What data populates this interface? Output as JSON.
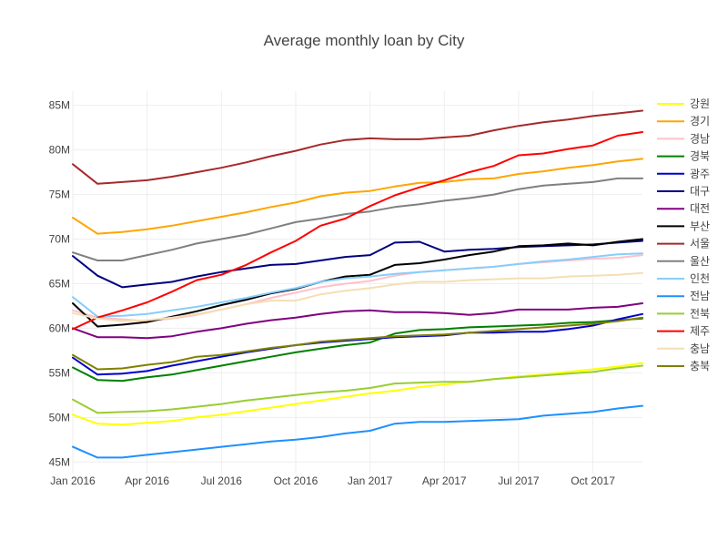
{
  "chart_data": {
    "type": "line",
    "title": "Average monthly loan by City",
    "xlabel": "",
    "ylabel": "",
    "x": [
      "2016-01",
      "2016-02",
      "2016-03",
      "2016-04",
      "2016-05",
      "2016-06",
      "2016-07",
      "2016-08",
      "2016-09",
      "2016-10",
      "2016-11",
      "2016-12",
      "2017-01",
      "2017-02",
      "2017-03",
      "2017-04",
      "2017-05",
      "2017-06",
      "2017-07",
      "2017-08",
      "2017-09",
      "2017-10",
      "2017-11",
      "2017-12"
    ],
    "x_ticks": [
      {
        "x": "2016-01",
        "label": "Jan 2016"
      },
      {
        "x": "2016-04",
        "label": "Apr 2016"
      },
      {
        "x": "2016-07",
        "label": "Jul 2016"
      },
      {
        "x": "2016-10",
        "label": "Oct 2016"
      },
      {
        "x": "2017-01",
        "label": "Jan 2017"
      },
      {
        "x": "2017-04",
        "label": "Apr 2017"
      },
      {
        "x": "2017-07",
        "label": "Jul 2017"
      },
      {
        "x": "2017-10",
        "label": "Oct 2017"
      }
    ],
    "ylim": [
      43.7,
      86.6
    ],
    "y_ticks": [
      {
        "value": 45,
        "label": "45M"
      },
      {
        "value": 50,
        "label": "50M"
      },
      {
        "value": 55,
        "label": "55M"
      },
      {
        "value": 60,
        "label": "60M"
      },
      {
        "value": 65,
        "label": "65M"
      },
      {
        "value": 70,
        "label": "70M"
      },
      {
        "value": 75,
        "label": "75M"
      },
      {
        "value": 80,
        "label": "80M"
      },
      {
        "value": 85,
        "label": "85M"
      }
    ],
    "grid": true,
    "legend_position": "right",
    "series": [
      {
        "name": "강원",
        "color": "#ffff00",
        "values": [
          50.3,
          49.3,
          49.2,
          49.4,
          49.6,
          50.0,
          50.3,
          50.7,
          51.1,
          51.5,
          51.9,
          52.3,
          52.7,
          53.0,
          53.4,
          53.7,
          54.0,
          54.3,
          54.6,
          54.8,
          55.1,
          55.4,
          55.7,
          56.1
        ]
      },
      {
        "name": "경기",
        "color": "#ffa500",
        "values": [
          72.4,
          70.6,
          70.8,
          71.1,
          71.5,
          72.0,
          72.5,
          73.0,
          73.6,
          74.1,
          74.8,
          75.2,
          75.4,
          75.9,
          76.3,
          76.4,
          76.7,
          76.8,
          77.3,
          77.6,
          78.0,
          78.3,
          78.7,
          79.0
        ]
      },
      {
        "name": "경남",
        "color": "#ffc0cb",
        "values": [
          62.0,
          61.2,
          61.0,
          60.8,
          61.1,
          61.5,
          62.1,
          62.7,
          63.4,
          64.0,
          64.6,
          65.0,
          65.3,
          65.9,
          66.3,
          66.5,
          66.7,
          66.9,
          67.2,
          67.4,
          67.6,
          67.8,
          67.9,
          68.2
        ]
      },
      {
        "name": "경북",
        "color": "#008000",
        "values": [
          55.6,
          54.2,
          54.1,
          54.5,
          54.8,
          55.3,
          55.8,
          56.3,
          56.8,
          57.3,
          57.7,
          58.1,
          58.4,
          59.4,
          59.8,
          59.9,
          60.1,
          60.2,
          60.3,
          60.4,
          60.6,
          60.7,
          60.9,
          61.1
        ]
      },
      {
        "name": "광주",
        "color": "#0000cd",
        "values": [
          56.7,
          54.8,
          54.9,
          55.2,
          55.8,
          56.3,
          56.8,
          57.3,
          57.7,
          58.1,
          58.4,
          58.6,
          58.8,
          59.0,
          59.1,
          59.2,
          59.5,
          59.5,
          59.6,
          59.6,
          59.9,
          60.3,
          61.0,
          61.6
        ]
      },
      {
        "name": "대구",
        "color": "#000080",
        "values": [
          68.1,
          65.9,
          64.6,
          64.9,
          65.2,
          65.8,
          66.3,
          66.7,
          67.1,
          67.2,
          67.6,
          68.0,
          68.2,
          69.6,
          69.7,
          68.6,
          68.8,
          68.9,
          69.1,
          69.2,
          69.3,
          69.4,
          69.6,
          69.8
        ]
      },
      {
        "name": "대전",
        "color": "#800080",
        "values": [
          60.0,
          59.0,
          59.0,
          58.9,
          59.1,
          59.6,
          60.0,
          60.5,
          60.9,
          61.2,
          61.6,
          61.9,
          62.0,
          61.8,
          61.8,
          61.7,
          61.5,
          61.7,
          62.1,
          62.1,
          62.1,
          62.3,
          62.4,
          62.8
        ]
      },
      {
        "name": "부산",
        "color": "#000000",
        "values": [
          62.8,
          60.2,
          60.4,
          60.7,
          61.3,
          61.9,
          62.6,
          63.2,
          63.9,
          64.4,
          65.2,
          65.8,
          66.0,
          67.1,
          67.3,
          67.7,
          68.2,
          68.6,
          69.2,
          69.3,
          69.5,
          69.3,
          69.7,
          70.0
        ]
      },
      {
        "name": "서울",
        "color": "#a52a2a",
        "values": [
          78.4,
          76.2,
          76.4,
          76.6,
          77.0,
          77.5,
          78.0,
          78.6,
          79.3,
          79.9,
          80.6,
          81.1,
          81.3,
          81.2,
          81.2,
          81.4,
          81.6,
          82.2,
          82.7,
          83.1,
          83.4,
          83.8,
          84.1,
          84.4
        ]
      },
      {
        "name": "울산",
        "color": "#808080",
        "values": [
          68.5,
          67.6,
          67.6,
          68.2,
          68.8,
          69.5,
          70.0,
          70.5,
          71.2,
          71.9,
          72.3,
          72.8,
          73.1,
          73.6,
          73.9,
          74.3,
          74.6,
          75.0,
          75.6,
          76.0,
          76.2,
          76.4,
          76.8,
          76.8
        ]
      },
      {
        "name": "인천",
        "color": "#87cefa",
        "values": [
          63.5,
          61.3,
          61.4,
          61.6,
          62.0,
          62.4,
          62.9,
          63.4,
          64.0,
          64.5,
          65.2,
          65.6,
          65.8,
          66.1,
          66.3,
          66.5,
          66.7,
          66.9,
          67.2,
          67.5,
          67.7,
          68.0,
          68.3,
          68.4
        ]
      },
      {
        "name": "전남",
        "color": "#1e90ff",
        "values": [
          46.7,
          45.5,
          45.5,
          45.8,
          46.1,
          46.4,
          46.7,
          47.0,
          47.3,
          47.5,
          47.8,
          48.2,
          48.5,
          49.3,
          49.5,
          49.5,
          49.6,
          49.7,
          49.8,
          50.2,
          50.4,
          50.6,
          51.0,
          51.3
        ]
      },
      {
        "name": "전북",
        "color": "#9acd32",
        "values": [
          52.0,
          50.5,
          50.6,
          50.7,
          50.9,
          51.2,
          51.5,
          51.9,
          52.2,
          52.5,
          52.8,
          53.0,
          53.3,
          53.8,
          53.9,
          54.0,
          54.0,
          54.3,
          54.5,
          54.7,
          54.9,
          55.1,
          55.5,
          55.8
        ]
      },
      {
        "name": "제주",
        "color": "#ff0000",
        "values": [
          59.9,
          61.2,
          62.0,
          62.9,
          64.1,
          65.4,
          66.0,
          67.1,
          68.5,
          69.8,
          71.5,
          72.3,
          73.7,
          74.9,
          75.8,
          76.6,
          77.5,
          78.2,
          79.4,
          79.6,
          80.1,
          80.5,
          81.6,
          82.0
        ]
      },
      {
        "name": "충남",
        "color": "#f5deb3",
        "values": [
          61.7,
          61.1,
          60.8,
          60.9,
          61.2,
          61.6,
          62.1,
          62.7,
          63.1,
          63.1,
          63.8,
          64.2,
          64.5,
          64.9,
          65.2,
          65.2,
          65.4,
          65.5,
          65.6,
          65.6,
          65.8,
          65.9,
          66.0,
          66.2
        ]
      },
      {
        "name": "충북",
        "color": "#808000",
        "values": [
          57.0,
          55.4,
          55.5,
          55.9,
          56.2,
          56.8,
          57.0,
          57.4,
          57.8,
          58.1,
          58.5,
          58.7,
          58.9,
          59.1,
          59.2,
          59.3,
          59.5,
          59.7,
          59.9,
          60.1,
          60.3,
          60.5,
          60.8,
          61.2
        ]
      }
    ]
  }
}
